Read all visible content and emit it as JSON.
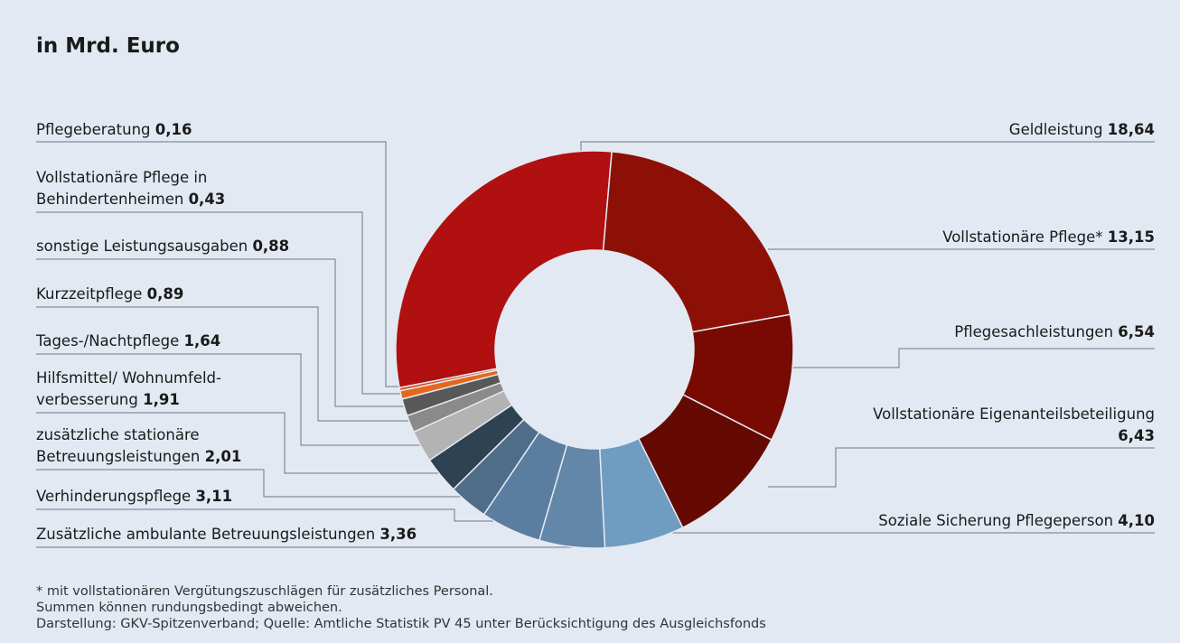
{
  "title": "in Mrd. Euro",
  "chart_data": {
    "type": "pie",
    "subtype": "donut",
    "title": "in Mrd. Euro",
    "slices": [
      {
        "label": "Geldleistung",
        "value": 18.64,
        "value_text": "18,64",
        "color": "#b01010"
      },
      {
        "label": "Vollstationäre Pflege*",
        "value": 13.15,
        "value_text": "13,15",
        "color": "#8c1006"
      },
      {
        "label": "Pflegesachleistungen",
        "value": 6.54,
        "value_text": "6,54",
        "color": "#780a02"
      },
      {
        "label": "Vollstationäre Eigenanteilsbeteiligung",
        "value": 6.43,
        "value_text": "6,43",
        "color": "#640a02"
      },
      {
        "label": "Soziale Sicherung Pflegeperson",
        "value": 4.1,
        "value_text": "4,10",
        "color": "#6f9cc1"
      },
      {
        "label": "Zusätzliche ambulante Betreuungsleistungen",
        "value": 3.36,
        "value_text": "3,36",
        "color": "#6387a9"
      },
      {
        "label": "Verhinderungspflege",
        "value": 3.11,
        "value_text": "3,11",
        "color": "#5b7ea0"
      },
      {
        "label": "zusätzliche stationäre Betreuungsleistungen",
        "value": 2.01,
        "value_text": "2,01",
        "color": "#4f6d89"
      },
      {
        "label": "Hilfsmittel/ Wohnumfeld-verbesserung",
        "value": 1.91,
        "value_text": "1,91",
        "color": "#2e4252"
      },
      {
        "label": "Tages-/Nachtpflege",
        "value": 1.64,
        "value_text": "1,64",
        "color": "#b3b3b3"
      },
      {
        "label": "Kurzzeitpflege",
        "value": 0.89,
        "value_text": "0,89",
        "color": "#8a8a8a"
      },
      {
        "label": "sonstige Leistungsausgaben",
        "value": 0.88,
        "value_text": "0,88",
        "color": "#585858"
      },
      {
        "label": "Vollstationäre Pflege in Behindertenheimen",
        "value": 0.43,
        "value_text": "0,43",
        "color": "#e5671c"
      },
      {
        "label": "Pflegeberatung",
        "value": 0.16,
        "value_text": "0,16",
        "color": "#d9461c"
      }
    ]
  },
  "labels": {
    "geld": {
      "line1": "Geldleistung ",
      "value": "18,64"
    },
    "vollstat": {
      "line1": "Vollstationäre Pflege* ",
      "value": "13,15"
    },
    "sach": {
      "line1": "Pflegesachleistungen ",
      "value": "6,54"
    },
    "eigen": {
      "line1": "Vollstationäre Eigenanteilsbeteiligung",
      "value": "6,43"
    },
    "sozial": {
      "line1": "Soziale Sicherung Pflegeperson ",
      "value": "4,10"
    },
    "beratung": {
      "line1": "Pflegeberatung ",
      "value": "0,16"
    },
    "behind": {
      "line1": "Vollstationäre Pflege in",
      "line2": "Behindertenheimen ",
      "value": "0,43"
    },
    "sonstige": {
      "line1": "sonstige Leistungsausgaben ",
      "value": "0,88"
    },
    "kurzzeit": {
      "line1": "Kurzzeitpflege ",
      "value": "0,89"
    },
    "tages": {
      "line1": "Tages-/Nachtpflege ",
      "value": "1,64"
    },
    "hilfs": {
      "line1": "Hilfsmittel/ Wohnumfeld-",
      "line2": "verbesserung ",
      "value": "1,91"
    },
    "zusstat": {
      "line1": "zusätzliche stationäre",
      "line2": "Betreuungsleistungen ",
      "value": "2,01"
    },
    "verhind": {
      "line1": "Verhinderungspflege ",
      "value": "3,11"
    },
    "zusamb": {
      "line1": "Zusätzliche ambulante Betreuungsleistungen ",
      "value": "3,36"
    }
  },
  "footnotes": [
    " * mit vollstationären Vergütungszuschlägen für zusätzliches Personal.",
    "Summen können rundungsbedingt abweichen.",
    "Darstellung: GKV-Spitzenverband; Quelle: Amtliche Statistik PV 45 unter Berücksichtigung des Ausgleichsfonds"
  ]
}
